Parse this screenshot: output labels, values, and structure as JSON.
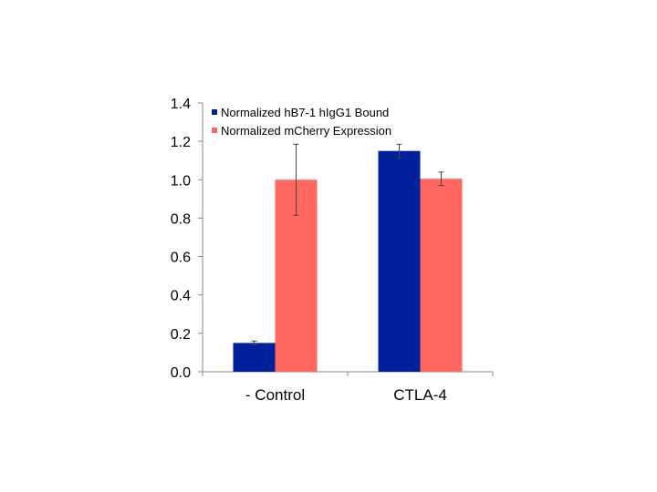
{
  "chart_data": {
    "type": "bar",
    "categories": [
      "- Control",
      "CTLA-4"
    ],
    "series": [
      {
        "name": "Normalized hB7-1 hIgG1 Bound",
        "color": "#00209C",
        "values": [
          0.15,
          1.15
        ],
        "errors": [
          0.01,
          0.035
        ]
      },
      {
        "name": "Normalized mCherry Expression",
        "color": "#FF6760",
        "values": [
          1.0,
          1.005
        ],
        "errors": [
          0.185,
          0.035
        ]
      }
    ],
    "ylim": [
      0,
      1.4
    ],
    "yticks": [
      "0.0",
      "0.2",
      "0.4",
      "0.6",
      "0.8",
      "1.0",
      "1.2",
      "1.4"
    ],
    "title": "",
    "xlabel": "",
    "ylabel": "",
    "grid": false,
    "legend_position": "top-left"
  }
}
